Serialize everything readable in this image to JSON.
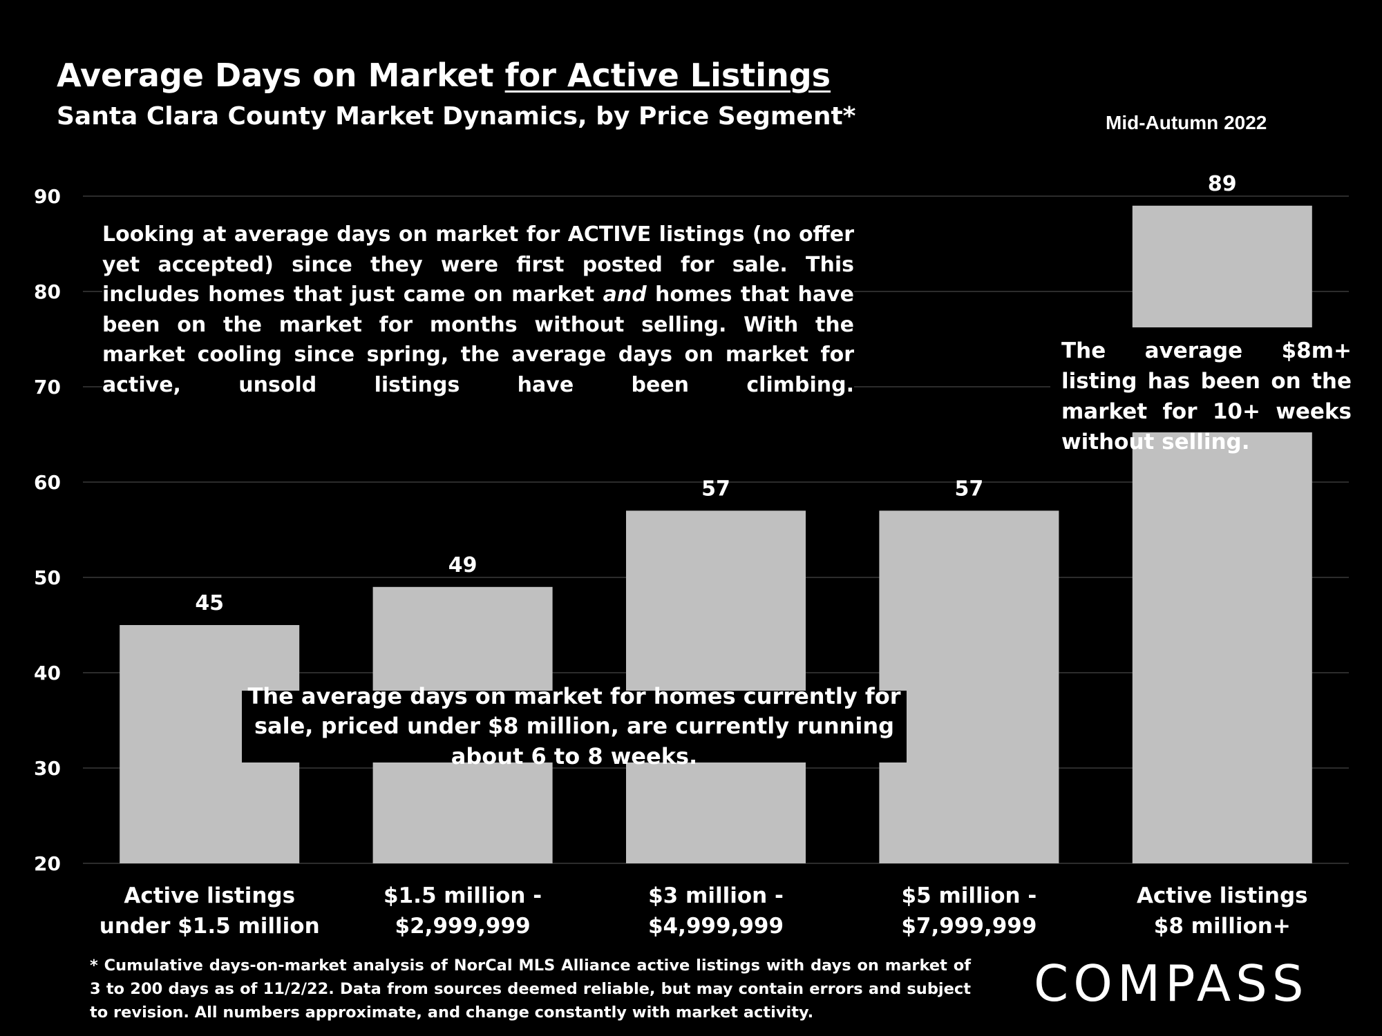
{
  "title_prefix": "Average Days on Market ",
  "title_emphasis": "for Active Listings",
  "subtitle": "Santa Clara County Market Dynamics, by Price Segment*",
  "period": "Mid-Autumn 2022",
  "notes": {
    "top": "Looking at average days on market for ACTIVE listings (no offer yet accepted) since they were first posted for sale. This includes homes that just came on market",
    "top_italic": "and",
    "top_end": "homes that have been on the market for months without selling. With the market cooling since spring, the average days on market for active, unsold listings have been climbing.",
    "middle": "The average days on market for homes currently for sale, priced under $8 million, are currently running about 6 to 8 weeks.",
    "right": "The average $8m+ listing has been on the market for 10+ weeks without selling."
  },
  "footnote": "* Cumulative days-on-market analysis of NorCal MLS Alliance active listings with days on market of 3 to 200 days as of 11/2/22. Data from sources deemed reliable, but may contain errors and subject to revision. All numbers approximate, and change constantly with market activity.",
  "brand": "COMPASS",
  "colors": {
    "background": "#000000",
    "bar": "#c0c0c0",
    "text": "#ffffff",
    "grid": "#3a3a3a"
  },
  "chart_data": {
    "type": "bar",
    "categories": [
      [
        "Active listings",
        "under $1.5 million"
      ],
      [
        "$1.5 million -",
        "$2,999,999"
      ],
      [
        "$3 million -",
        "$4,999,999"
      ],
      [
        "$5 million -",
        "$7,999,999"
      ],
      [
        "Active listings",
        "$8 million+"
      ]
    ],
    "values": [
      45,
      49,
      57,
      57,
      89
    ],
    "data_labels": [
      "45",
      "49",
      "57",
      "57",
      "89"
    ],
    "ylim": [
      20,
      90
    ],
    "yticks": [
      20,
      30,
      40,
      50,
      60,
      70,
      80,
      90
    ],
    "grid": true,
    "legend": false
  }
}
